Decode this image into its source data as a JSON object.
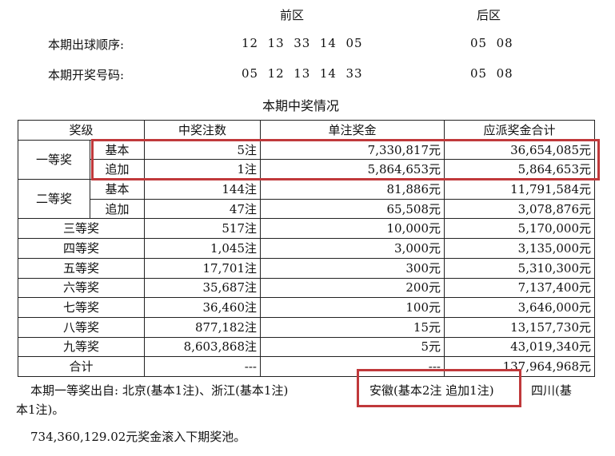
{
  "draw": {
    "front_label": "前区",
    "back_label": "后区",
    "order_label": "本期出球顺序:",
    "order_front": "12  13  33  14  05",
    "order_back": "05  08",
    "result_label": "本期开奖号码:",
    "result_front": "05  12  13  14  33",
    "result_back": "05  08"
  },
  "table": {
    "title": "本期中奖情况",
    "headers": [
      "奖级",
      "中奖注数",
      "单注奖金",
      "应派奖金合计"
    ],
    "first": {
      "name": "一等奖",
      "basic": {
        "type": "基本",
        "count": "5注",
        "prize": "7,330,817元",
        "total": "36,654,085元"
      },
      "extra": {
        "type": "追加",
        "count": "1注",
        "prize": "5,864,653元",
        "total": "5,864,653元"
      }
    },
    "second": {
      "name": "二等奖",
      "basic": {
        "type": "基本",
        "count": "144注",
        "prize": "81,886元",
        "total": "11,791,584元"
      },
      "extra": {
        "type": "追加",
        "count": "47注",
        "prize": "65,508元",
        "total": "3,078,876元"
      }
    },
    "rows": [
      {
        "name": "三等奖",
        "count": "517注",
        "prize": "10,000元",
        "total": "5,170,000元"
      },
      {
        "name": "四等奖",
        "count": "1,045注",
        "prize": "3,000元",
        "total": "3,135,000元"
      },
      {
        "name": "五等奖",
        "count": "17,701注",
        "prize": "300元",
        "total": "5,310,300元"
      },
      {
        "name": "六等奖",
        "count": "35,687注",
        "prize": "200元",
        "total": "7,137,400元"
      },
      {
        "name": "七等奖",
        "count": "36,460注",
        "prize": "100元",
        "total": "3,646,000元"
      },
      {
        "name": "八等奖",
        "count": "877,182注",
        "prize": "15元",
        "total": "13,157,730元"
      },
      {
        "name": "九等奖",
        "count": "8,603,868注",
        "prize": "5元",
        "total": "43,019,340元"
      }
    ],
    "sum": {
      "name": "合计",
      "count": "---",
      "prize": "---",
      "total": "137,964,968元"
    }
  },
  "notes": {
    "line1_a": "本期一等奖出自: 北京(基本1注)、浙江(基本1注)",
    "line1_b": "安徽(基本2注 追加1注)",
    "line1_c": "四川(基",
    "line2": "本1注)。",
    "pool": "734,360,129.02元奖金滚入下期奖池。"
  },
  "highlight_color": "#c0393b"
}
